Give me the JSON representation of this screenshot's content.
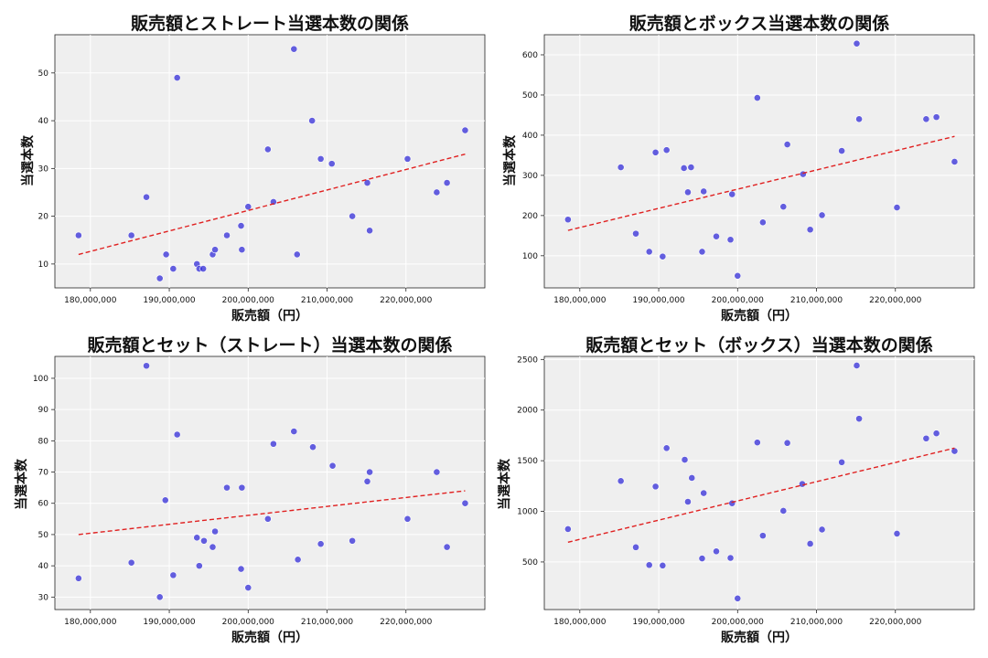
{
  "chart_data": [
    {
      "type": "scatter",
      "title": "販売額とストレート当選本数の関係",
      "xlabel": "販売額（円）",
      "ylabel": "当選本数",
      "xlim": [
        175500000,
        230000000
      ],
      "ylim": [
        5,
        58
      ],
      "xticks": [
        180000000,
        190000000,
        200000000,
        210000000,
        220000000
      ],
      "xtick_labels": [
        "180,000,000",
        "190,000,000",
        "200,000,000",
        "210,000,000",
        "220,000,000"
      ],
      "yticks": [
        10,
        20,
        30,
        40,
        50
      ],
      "ytick_labels": [
        "10",
        "20",
        "30",
        "40",
        "50"
      ],
      "grid": true,
      "trend": {
        "x": [
          178500000,
          227500000
        ],
        "y": [
          12,
          33
        ]
      },
      "points": [
        {
          "x": 178500000,
          "y": 16
        },
        {
          "x": 185200000,
          "y": 16
        },
        {
          "x": 187100000,
          "y": 24
        },
        {
          "x": 188800000,
          "y": 7
        },
        {
          "x": 189600000,
          "y": 12
        },
        {
          "x": 190500000,
          "y": 9
        },
        {
          "x": 191000000,
          "y": 49
        },
        {
          "x": 193500000,
          "y": 10
        },
        {
          "x": 193800000,
          "y": 9
        },
        {
          "x": 194300000,
          "y": 9
        },
        {
          "x": 195500000,
          "y": 12
        },
        {
          "x": 195800000,
          "y": 13
        },
        {
          "x": 197300000,
          "y": 16
        },
        {
          "x": 199100000,
          "y": 18
        },
        {
          "x": 199200000,
          "y": 13
        },
        {
          "x": 200000000,
          "y": 22
        },
        {
          "x": 202500000,
          "y": 34
        },
        {
          "x": 203200000,
          "y": 23
        },
        {
          "x": 205800000,
          "y": 55
        },
        {
          "x": 206200000,
          "y": 12
        },
        {
          "x": 208100000,
          "y": 40
        },
        {
          "x": 209200000,
          "y": 32
        },
        {
          "x": 210600000,
          "y": 31
        },
        {
          "x": 213200000,
          "y": 20
        },
        {
          "x": 215100000,
          "y": 27
        },
        {
          "x": 215400000,
          "y": 17
        },
        {
          "x": 220200000,
          "y": 32
        },
        {
          "x": 223900000,
          "y": 25
        },
        {
          "x": 225200000,
          "y": 27
        },
        {
          "x": 227500000,
          "y": 38
        }
      ]
    },
    {
      "type": "scatter",
      "title": "販売額とボックス当選本数の関係",
      "xlabel": "販売額（円）",
      "ylabel": "当選本数",
      "xlim": [
        175500000,
        230000000
      ],
      "ylim": [
        20,
        650
      ],
      "xticks": [
        180000000,
        190000000,
        200000000,
        210000000,
        220000000
      ],
      "xtick_labels": [
        "180,000,000",
        "190,000,000",
        "200,000,000",
        "210,000,000",
        "220,000,000"
      ],
      "yticks": [
        100,
        200,
        300,
        400,
        500,
        600
      ],
      "ytick_labels": [
        "100",
        "200",
        "300",
        "400",
        "500",
        "600"
      ],
      "grid": true,
      "trend": {
        "x": [
          178500000,
          227500000
        ],
        "y": [
          163,
          397
        ]
      },
      "points": [
        {
          "x": 178500000,
          "y": 190
        },
        {
          "x": 185200000,
          "y": 320
        },
        {
          "x": 187100000,
          "y": 155
        },
        {
          "x": 188800000,
          "y": 110
        },
        {
          "x": 189600000,
          "y": 357
        },
        {
          "x": 190500000,
          "y": 98
        },
        {
          "x": 191000000,
          "y": 363
        },
        {
          "x": 193200000,
          "y": 318
        },
        {
          "x": 193700000,
          "y": 258
        },
        {
          "x": 194100000,
          "y": 320
        },
        {
          "x": 195500000,
          "y": 110
        },
        {
          "x": 195700000,
          "y": 260
        },
        {
          "x": 197300000,
          "y": 148
        },
        {
          "x": 199100000,
          "y": 140
        },
        {
          "x": 199300000,
          "y": 253
        },
        {
          "x": 200000000,
          "y": 50
        },
        {
          "x": 202500000,
          "y": 493
        },
        {
          "x": 203200000,
          "y": 183
        },
        {
          "x": 205800000,
          "y": 222
        },
        {
          "x": 206300000,
          "y": 377
        },
        {
          "x": 208300000,
          "y": 303
        },
        {
          "x": 209200000,
          "y": 165
        },
        {
          "x": 210700000,
          "y": 201
        },
        {
          "x": 213200000,
          "y": 361
        },
        {
          "x": 215100000,
          "y": 628
        },
        {
          "x": 215400000,
          "y": 440
        },
        {
          "x": 220200000,
          "y": 220
        },
        {
          "x": 223900000,
          "y": 440
        },
        {
          "x": 225200000,
          "y": 445
        },
        {
          "x": 227500000,
          "y": 334
        }
      ]
    },
    {
      "type": "scatter",
      "title": "販売額とセット（ストレート）当選本数の関係",
      "xlabel": "販売額（円）",
      "ylabel": "当選本数",
      "xlim": [
        175500000,
        230000000
      ],
      "ylim": [
        26,
        107
      ],
      "xticks": [
        180000000,
        190000000,
        200000000,
        210000000,
        220000000
      ],
      "xtick_labels": [
        "180,000,000",
        "190,000,000",
        "200,000,000",
        "210,000,000",
        "220,000,000"
      ],
      "yticks": [
        30,
        40,
        50,
        60,
        70,
        80,
        90,
        100
      ],
      "ytick_labels": [
        "30",
        "40",
        "50",
        "60",
        "70",
        "80",
        "90",
        "100"
      ],
      "grid": true,
      "trend": {
        "x": [
          178500000,
          227500000
        ],
        "y": [
          50,
          64
        ]
      },
      "points": [
        {
          "x": 178500000,
          "y": 36
        },
        {
          "x": 185200000,
          "y": 41
        },
        {
          "x": 187100000,
          "y": 104
        },
        {
          "x": 188800000,
          "y": 30
        },
        {
          "x": 189500000,
          "y": 61
        },
        {
          "x": 190500000,
          "y": 37
        },
        {
          "x": 191000000,
          "y": 82
        },
        {
          "x": 193500000,
          "y": 49
        },
        {
          "x": 193800000,
          "y": 40
        },
        {
          "x": 194400000,
          "y": 48
        },
        {
          "x": 195500000,
          "y": 46
        },
        {
          "x": 195800000,
          "y": 51
        },
        {
          "x": 197300000,
          "y": 65
        },
        {
          "x": 199100000,
          "y": 39
        },
        {
          "x": 199200000,
          "y": 65
        },
        {
          "x": 200000000,
          "y": 33
        },
        {
          "x": 202500000,
          "y": 55
        },
        {
          "x": 203200000,
          "y": 79
        },
        {
          "x": 205800000,
          "y": 83
        },
        {
          "x": 206300000,
          "y": 42
        },
        {
          "x": 208200000,
          "y": 78
        },
        {
          "x": 209200000,
          "y": 47
        },
        {
          "x": 210700000,
          "y": 72
        },
        {
          "x": 213200000,
          "y": 48
        },
        {
          "x": 215100000,
          "y": 67
        },
        {
          "x": 215400000,
          "y": 70
        },
        {
          "x": 220200000,
          "y": 55
        },
        {
          "x": 223900000,
          "y": 70
        },
        {
          "x": 225200000,
          "y": 46
        },
        {
          "x": 227500000,
          "y": 60
        }
      ]
    },
    {
      "type": "scatter",
      "title": "販売額とセット（ボックス）当選本数の関係",
      "xlabel": "販売額（円）",
      "ylabel": "当選本数",
      "xlim": [
        175500000,
        230000000
      ],
      "ylim": [
        30,
        2530
      ],
      "xticks": [
        180000000,
        190000000,
        200000000,
        210000000,
        220000000
      ],
      "xtick_labels": [
        "180,000,000",
        "190,000,000",
        "200,000,000",
        "210,000,000",
        "220,000,000"
      ],
      "yticks": [
        500,
        1000,
        1500,
        2000,
        2500
      ],
      "ytick_labels": [
        "500",
        "1000",
        "1500",
        "2000",
        "2500"
      ],
      "grid": true,
      "trend": {
        "x": [
          178500000,
          227500000
        ],
        "y": [
          695,
          1625
        ]
      },
      "points": [
        {
          "x": 178500000,
          "y": 825
        },
        {
          "x": 185200000,
          "y": 1300
        },
        {
          "x": 187100000,
          "y": 645
        },
        {
          "x": 188800000,
          "y": 470
        },
        {
          "x": 189600000,
          "y": 1245
        },
        {
          "x": 190500000,
          "y": 465
        },
        {
          "x": 191000000,
          "y": 1625
        },
        {
          "x": 193300000,
          "y": 1510
        },
        {
          "x": 193700000,
          "y": 1095
        },
        {
          "x": 194200000,
          "y": 1330
        },
        {
          "x": 195500000,
          "y": 535
        },
        {
          "x": 195700000,
          "y": 1180
        },
        {
          "x": 197300000,
          "y": 605
        },
        {
          "x": 199100000,
          "y": 540
        },
        {
          "x": 199300000,
          "y": 1080
        },
        {
          "x": 200000000,
          "y": 140
        },
        {
          "x": 202500000,
          "y": 1680
        },
        {
          "x": 203200000,
          "y": 760
        },
        {
          "x": 205800000,
          "y": 1005
        },
        {
          "x": 206300000,
          "y": 1675
        },
        {
          "x": 208200000,
          "y": 1270
        },
        {
          "x": 209200000,
          "y": 680
        },
        {
          "x": 210700000,
          "y": 820
        },
        {
          "x": 213200000,
          "y": 1485
        },
        {
          "x": 215100000,
          "y": 2440
        },
        {
          "x": 215400000,
          "y": 1915
        },
        {
          "x": 220200000,
          "y": 780
        },
        {
          "x": 223900000,
          "y": 1720
        },
        {
          "x": 225200000,
          "y": 1770
        },
        {
          "x": 227500000,
          "y": 1595
        }
      ]
    }
  ]
}
